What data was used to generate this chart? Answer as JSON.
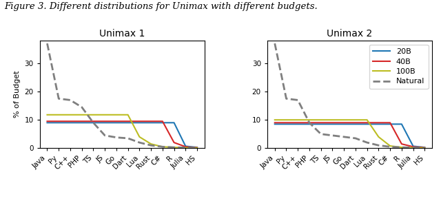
{
  "figure_title": "Figure 3. Different distributions for Unimax with different budgets.",
  "categories": [
    "Java",
    "Py",
    "C++",
    "PHP",
    "TS",
    "JS",
    "Go",
    "Dart",
    "Lua",
    "Rust",
    "C#",
    "R",
    "Julia",
    "HS"
  ],
  "subplot1_title": "Unimax 1",
  "subplot2_title": "Unimax 2",
  "ylabel": "% of Budget",
  "series": {
    "20B": {
      "color": "#1f77b4",
      "linestyle": "-",
      "linewidth": 1.5,
      "unimax1": [
        9.0,
        9.0,
        9.0,
        9.0,
        9.0,
        9.0,
        9.0,
        9.0,
        9.0,
        9.0,
        9.0,
        9.0,
        0.7,
        0.3
      ],
      "unimax2": [
        8.5,
        8.5,
        8.5,
        8.5,
        8.5,
        8.5,
        8.5,
        8.5,
        8.5,
        8.5,
        8.5,
        8.5,
        0.7,
        0.3
      ]
    },
    "40B": {
      "color": "#d62728",
      "linestyle": "-",
      "linewidth": 1.5,
      "unimax1": [
        9.5,
        9.5,
        9.5,
        9.5,
        9.5,
        9.5,
        9.5,
        9.5,
        9.5,
        9.5,
        9.5,
        2.0,
        0.5,
        0.2
      ],
      "unimax2": [
        9.0,
        9.0,
        9.0,
        9.0,
        9.0,
        9.0,
        9.0,
        9.0,
        9.0,
        9.0,
        9.0,
        1.5,
        0.5,
        0.2
      ]
    },
    "100B": {
      "color": "#bcbd22",
      "linestyle": "-",
      "linewidth": 1.5,
      "unimax1": [
        11.8,
        11.8,
        11.8,
        11.8,
        11.8,
        11.8,
        11.8,
        11.8,
        4.0,
        1.5,
        0.5,
        0.3,
        0.15,
        0.1
      ],
      "unimax2": [
        10.0,
        10.0,
        10.0,
        10.0,
        10.0,
        10.0,
        10.0,
        10.0,
        10.0,
        4.0,
        0.8,
        0.3,
        0.15,
        0.1
      ]
    },
    "Natural": {
      "color": "#7f7f7f",
      "linestyle": "--",
      "linewidth": 2.0,
      "unimax1": [
        37.0,
        17.5,
        17.0,
        14.5,
        9.0,
        4.5,
        3.8,
        3.5,
        2.0,
        1.0,
        0.5,
        0.3,
        0.2,
        0.1
      ],
      "unimax2": [
        37.0,
        17.5,
        17.0,
        9.0,
        5.0,
        4.5,
        4.0,
        3.5,
        2.0,
        1.0,
        0.5,
        0.3,
        0.2,
        0.1
      ]
    }
  },
  "ylim": [
    0,
    38
  ],
  "yticks": [
    0,
    10,
    20,
    30
  ],
  "legend_loc": "upper right",
  "title_fontsize": 10,
  "axis_fontsize": 8,
  "tick_fontsize": 7.5,
  "fig_title_fontsize": 9.5,
  "fig_title_style": "italic"
}
